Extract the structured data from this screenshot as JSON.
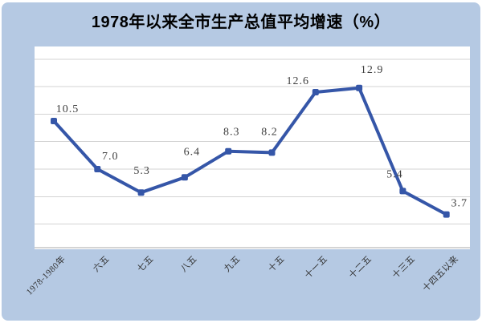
{
  "title": "1978年以来全市生产总值平均增速（%）",
  "chart_data": {
    "type": "line",
    "title": "1978年以来全市生产总值平均增速（%）",
    "categories": [
      "1978-1980年",
      "六五",
      "七五",
      "八五",
      "九五",
      "十五",
      "十一五",
      "十二五",
      "十三五",
      "十四五以来"
    ],
    "values": [
      10.5,
      7.0,
      5.3,
      6.4,
      8.3,
      8.2,
      12.6,
      12.9,
      5.4,
      3.7
    ],
    "point_labels": [
      "10.5",
      "7.0",
      "5.3",
      "6.4",
      "8.3",
      "8.2",
      "12.6",
      "12.9",
      "5.4",
      "3.7"
    ],
    "xlabel": "",
    "ylabel": "",
    "y_axis": {
      "tick_labels_visible": false,
      "gridline_values": [
        3,
        5,
        7,
        9,
        11,
        13,
        15
      ],
      "ylim": [
        1.3,
        15.9
      ]
    },
    "grid": "horizontal",
    "legend": "none",
    "marker": "square",
    "colors": {
      "line": "#3556a8",
      "panel_background": "#b5c9e3",
      "plot_background": "#ffffff",
      "gridline": "#d3d3d3",
      "axis_line": "#a9a9a9",
      "data_label": "#3f3f3f",
      "x_axis_label": "#333333",
      "title_text": "#000000"
    }
  }
}
